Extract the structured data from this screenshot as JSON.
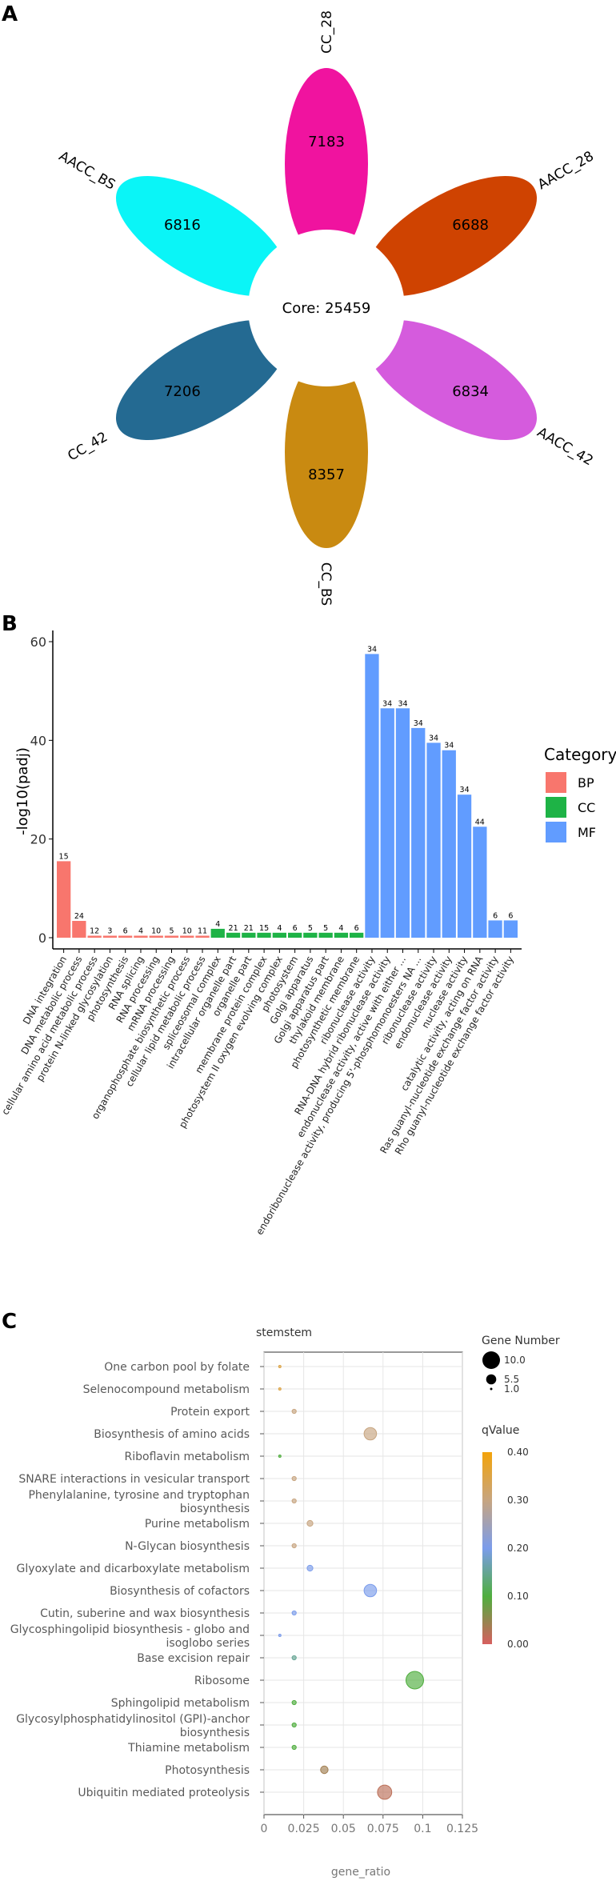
{
  "colors": {
    "bp": "#F8766D",
    "cc": "#1EB346",
    "mf": "#619CFF",
    "petals": [
      "#F0139F",
      "#CF4301",
      "#D55BDD",
      "#C98A11",
      "#246A92",
      "#0AF5F7"
    ],
    "qvalue_scale": [
      "#D75F5F",
      "#4FAE3E",
      "#7B9CEB",
      "#C7A580",
      "#F3A30A"
    ]
  },
  "panels": {
    "a": "A",
    "b": "B",
    "c": "C"
  },
  "chart_data": [
    {
      "type": "flower",
      "core_label": "Core: 25459",
      "core": 25459,
      "petals": [
        {
          "name": "CC_28",
          "value": "7183"
        },
        {
          "name": "AACC_28",
          "value": "6688"
        },
        {
          "name": "AACC_42",
          "value": "6834"
        },
        {
          "name": "CC_BS",
          "value": "8357"
        },
        {
          "name": "CC_42",
          "value": "7206"
        },
        {
          "name": "AACC_BS",
          "value": "6816"
        }
      ]
    },
    {
      "type": "bar",
      "ylabel": "-log10(padj)",
      "ylim": [
        0,
        60
      ],
      "yticks": [
        "0",
        "20",
        "40",
        "60"
      ],
      "legend_title": "Category",
      "legend": [
        "BP",
        "CC",
        "MF"
      ],
      "bars": [
        {
          "term": "DNA integration",
          "cat": "BP",
          "value": 15.5,
          "label": "15"
        },
        {
          "term": "DNA metabolic process",
          "cat": "BP",
          "value": 3.4,
          "label": "24"
        },
        {
          "term": "cellular amino acid metabolic process",
          "cat": "BP",
          "value": 0.4,
          "label": "12"
        },
        {
          "term": "protein N-linked glycosylation",
          "cat": "BP",
          "value": 0.4,
          "label": "3"
        },
        {
          "term": "photosynthesis",
          "cat": "BP",
          "value": 0.4,
          "label": "6"
        },
        {
          "term": "RNA splicing",
          "cat": "BP",
          "value": 0.4,
          "label": "4"
        },
        {
          "term": "RNA processing",
          "cat": "BP",
          "value": 0.4,
          "label": "10"
        },
        {
          "term": "mRNA processing",
          "cat": "BP",
          "value": 0.4,
          "label": "5"
        },
        {
          "term": "organophosphate biosynthetic process",
          "cat": "BP",
          "value": 0.4,
          "label": "10"
        },
        {
          "term": "cellular lipid metabolic process",
          "cat": "BP",
          "value": 0.4,
          "label": "11"
        },
        {
          "term": "spliceosomal complex",
          "cat": "CC",
          "value": 1.8,
          "label": "4"
        },
        {
          "term": "intracellular organelle part",
          "cat": "CC",
          "value": 1.0,
          "label": "21"
        },
        {
          "term": "organelle part",
          "cat": "CC",
          "value": 1.0,
          "label": "21"
        },
        {
          "term": "membrane protein complex",
          "cat": "CC",
          "value": 1.0,
          "label": "15"
        },
        {
          "term": "photosystem II oxygen evolving complex",
          "cat": "CC",
          "value": 1.0,
          "label": "4"
        },
        {
          "term": "photosystem",
          "cat": "CC",
          "value": 1.0,
          "label": "6"
        },
        {
          "term": "Golgi apparatus",
          "cat": "CC",
          "value": 1.0,
          "label": "5"
        },
        {
          "term": "Golgi apparatus part",
          "cat": "CC",
          "value": 1.0,
          "label": "5"
        },
        {
          "term": "thylakoid membrane",
          "cat": "CC",
          "value": 1.0,
          "label": "4"
        },
        {
          "term": "photosynthetic membrane",
          "cat": "CC",
          "value": 1.0,
          "label": "6"
        },
        {
          "term": "ribonuclease activity",
          "cat": "MF",
          "value": 57.5,
          "label": "34"
        },
        {
          "term": "RNA-DNA hybrid ribonuclease activity",
          "cat": "MF",
          "value": 46.5,
          "label": "34"
        },
        {
          "term": "endonuclease activity, active with either ...",
          "cat": "MF",
          "value": 46.5,
          "label": "34"
        },
        {
          "term": "endoribonuclease activity, producing 5'-phosphomonoesters NA ...",
          "cat": "MF",
          "value": 42.5,
          "label": "34"
        },
        {
          "term": "ribonuclease activity",
          "cat": "MF",
          "value": 39.5,
          "label": "34"
        },
        {
          "term": "endonuclease activity",
          "cat": "MF",
          "value": 38.0,
          "label": "34"
        },
        {
          "term": "nuclease activity",
          "cat": "MF",
          "value": 29.0,
          "label": "34"
        },
        {
          "term": "catalytic activity, acting on RNA",
          "cat": "MF",
          "value": 22.5,
          "label": "44"
        },
        {
          "term": "Ras guanyl-nucleotide exchange factor activity",
          "cat": "MF",
          "value": 3.5,
          "label": "6"
        },
        {
          "term": "Rho guanyl-nucleotide exchange factor activity",
          "cat": "MF",
          "value": 3.5,
          "label": "6"
        }
      ],
      "xtick_labels": [
        "DNA integration",
        "DNA metabolic process",
        "cellular amino acid metabolic process",
        "protein N-linked glycosylation",
        "photosynthesis",
        "RNA splicing",
        "RNA processing",
        "mRNA processing",
        "organophosphate biosynthetic process",
        "cellular lipid metabolic process",
        "spliceosomal complex",
        "intracellular organelle part",
        "organelle part",
        "membrane protein complex",
        "photosystem II oxygen evolving complex",
        "photosystem",
        "Golgi apparatus",
        "Golgi apparatus part",
        "thylakoid membrane",
        "photosynthetic membrane",
        "ribonuclease activity",
        "RNA-DNA hybrid ribonuclease activity",
        "endonuclease activity, active with either ...",
        "endoribonuclease activity, producing 5'-phosphomonoesters NA ...",
        "ribonuclease activity",
        "endonuclease activity",
        "nuclease activity",
        "catalytic activity, acting on RNA",
        "Ras guanyl-nucleotide exchange factor activity",
        "Rho guanyl-nucleotide exchange factor activity"
      ]
    },
    {
      "type": "scatter",
      "title": "stemstem",
      "xlabel": "gene_ratio",
      "xlim": [
        0,
        0.125
      ],
      "xticks": [
        "0",
        "0.025",
        "0.05",
        "0.075",
        "0.1",
        "0.125"
      ],
      "xtick_values": [
        0,
        0.025,
        0.05,
        0.075,
        0.1,
        0.125
      ],
      "size_legend_title": "Gene Number",
      "size_legend": [
        "10.0",
        "5.5",
        "1.0"
      ],
      "size_legend_values": [
        10,
        5.5,
        1
      ],
      "color_legend_title": "qValue",
      "color_legend": [
        "0.40",
        "0.30",
        "0.20",
        "0.10",
        "0.00"
      ],
      "color_legend_values": [
        0.4,
        0.3,
        0.2,
        0.1,
        0.0
      ],
      "points": [
        {
          "pathway": "One carbon pool by folate",
          "gene_ratio": 0.01,
          "count": 1,
          "qvalue": 0.35
        },
        {
          "pathway": "Selenocompound metabolism",
          "gene_ratio": 0.01,
          "count": 1,
          "qvalue": 0.35
        },
        {
          "pathway": "Protein export",
          "gene_ratio": 0.019,
          "count": 2,
          "qvalue": 0.3
        },
        {
          "pathway": "Biosynthesis of amino acids",
          "gene_ratio": 0.067,
          "count": 7,
          "qvalue": 0.3
        },
        {
          "pathway": "Riboflavin metabolism",
          "gene_ratio": 0.01,
          "count": 1,
          "qvalue": 0.1
        },
        {
          "pathway": "SNARE interactions in vesicular transport",
          "gene_ratio": 0.019,
          "count": 2,
          "qvalue": 0.3
        },
        {
          "pathway": "Phenylalanine, tyrosine and tryptophan\nbiosynthesis",
          "gene_ratio": 0.019,
          "count": 2,
          "qvalue": 0.3
        },
        {
          "pathway": "Purine metabolism",
          "gene_ratio": 0.029,
          "count": 3,
          "qvalue": 0.3
        },
        {
          "pathway": "N-Glycan biosynthesis",
          "gene_ratio": 0.019,
          "count": 2,
          "qvalue": 0.3
        },
        {
          "pathway": "Glyoxylate and dicarboxylate metabolism",
          "gene_ratio": 0.029,
          "count": 3,
          "qvalue": 0.2
        },
        {
          "pathway": "Biosynthesis of cofactors",
          "gene_ratio": 0.067,
          "count": 7,
          "qvalue": 0.2
        },
        {
          "pathway": "Cutin, suberine and wax biosynthesis",
          "gene_ratio": 0.019,
          "count": 2,
          "qvalue": 0.2
        },
        {
          "pathway": "Glycosphingolipid biosynthesis - globo and\nisoglobo series",
          "gene_ratio": 0.01,
          "count": 1,
          "qvalue": 0.2
        },
        {
          "pathway": "Base excision repair",
          "gene_ratio": 0.019,
          "count": 2,
          "qvalue": 0.15
        },
        {
          "pathway": "Ribosome",
          "gene_ratio": 0.095,
          "count": 10,
          "qvalue": 0.1
        },
        {
          "pathway": "Sphingolipid metabolism",
          "gene_ratio": 0.019,
          "count": 2,
          "qvalue": 0.1
        },
        {
          "pathway": "Glycosylphosphatidylinositol (GPI)-anchor\nbiosynthesis",
          "gene_ratio": 0.019,
          "count": 2,
          "qvalue": 0.1
        },
        {
          "pathway": "Thiamine metabolism",
          "gene_ratio": 0.019,
          "count": 2,
          "qvalue": 0.1
        },
        {
          "pathway": "Photosynthesis",
          "gene_ratio": 0.038,
          "count": 4,
          "qvalue": 0.04
        },
        {
          "pathway": "Ubiquitin mediated proteolysis",
          "gene_ratio": 0.076,
          "count": 8,
          "qvalue": 0.02
        }
      ]
    }
  ]
}
